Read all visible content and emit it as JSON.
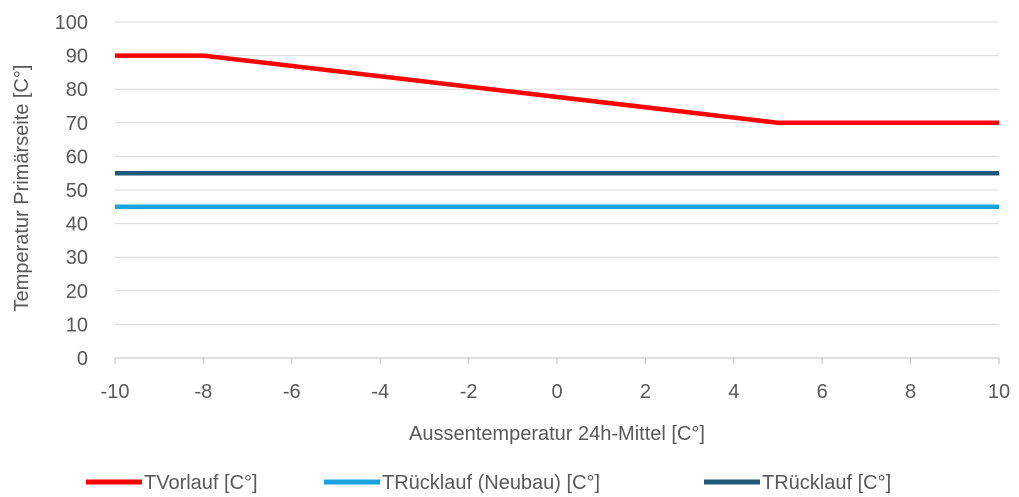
{
  "chart_data": {
    "type": "line",
    "title": "",
    "xlabel": "Aussentemperatur 24h-Mittel [C°]",
    "ylabel": "Temperatur Primärseite [C°]",
    "xlim": [
      -10,
      10
    ],
    "ylim": [
      0,
      100
    ],
    "x_ticks": [
      "-10",
      "-8",
      "-6",
      "-4",
      "-2",
      "0",
      "2",
      "4",
      "6",
      "8",
      "10"
    ],
    "y_ticks": [
      "0",
      "10",
      "20",
      "30",
      "40",
      "50",
      "60",
      "70",
      "80",
      "90",
      "100"
    ],
    "grid": "horizontal",
    "legend_position": "bottom",
    "series": [
      {
        "name": "TVorlauf [C°]",
        "color": "#ff0000",
        "x": [
          -10,
          -8,
          5,
          10
        ],
        "y": [
          90,
          90,
          70,
          70
        ]
      },
      {
        "name": "TRücklauf  (Neubau) [C°]",
        "color": "#1aa3dc",
        "x": [
          -10,
          10
        ],
        "y": [
          45,
          45
        ]
      },
      {
        "name": "TRücklauf [C°]",
        "color": "#1f5a7a",
        "x": [
          -10,
          10
        ],
        "y": [
          55,
          55
        ]
      }
    ]
  }
}
